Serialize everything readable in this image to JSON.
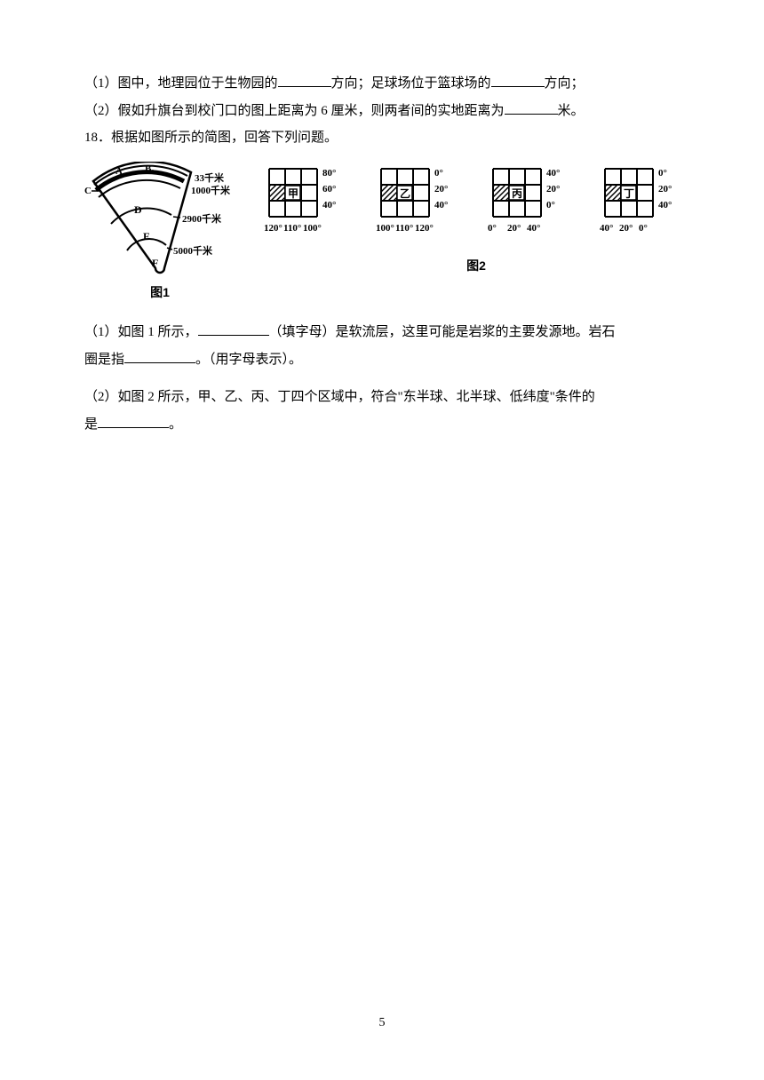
{
  "q17": {
    "line1_a": "（1）图中，地理园位于生物园的",
    "line1_b": "方向；足球场位于篮球场的",
    "line1_c": "方向；",
    "line2_a": "（2）假如升旗台到校门口的图上距离为 6 厘米，则两者间的实地距离为",
    "line2_b": "米。"
  },
  "q18": {
    "intro": "18．根据如图所示的简图，回答下列问题。",
    "part1_a": "（1）如图 1 所示，",
    "part1_b": "（填字母）是软流层，这里可能是岩浆的主要发源地。岩石",
    "part1_c": "圈是指",
    "part1_d": "。（用字母表示）。",
    "part2_a": "（2）如图 2 所示，甲、乙、丙、丁四个区域中，符合\"东半球、北半球、低纬度\"条件的",
    "part2_b": "是",
    "part2_c": "。"
  },
  "diagram1": {
    "labels": {
      "A": "A",
      "B1": "B₁",
      "B2": "B₂",
      "C": "C",
      "D": "D",
      "E": "E",
      "F": "F"
    },
    "depths": [
      "33千米",
      "1000千米",
      "2900千米",
      "5000千米"
    ],
    "caption": "图1"
  },
  "diagram2": {
    "grids": [
      {
        "name": "甲",
        "lat": [
          "80°",
          "60°",
          "40°"
        ],
        "lon": [
          "120°",
          "110°",
          "100°"
        ]
      },
      {
        "name": "乙",
        "lat": [
          "0°",
          "20°",
          "40°"
        ],
        "lon": [
          "100°",
          "110°",
          "120°"
        ]
      },
      {
        "name": "丙",
        "lat": [
          "40°",
          "20°",
          "0°"
        ],
        "lon": [
          "0°",
          "20°",
          "40°"
        ]
      },
      {
        "name": "丁",
        "lat": [
          "0°",
          "20°",
          "40°"
        ],
        "lon": [
          "40°",
          "20°",
          "0°"
        ]
      }
    ],
    "caption": "图2"
  },
  "pageNumber": "5"
}
